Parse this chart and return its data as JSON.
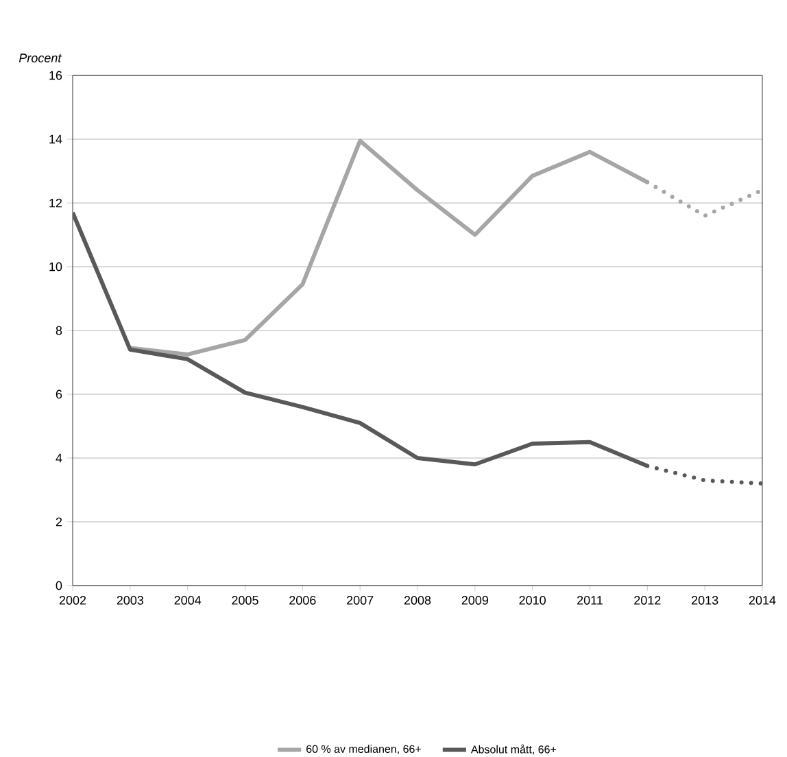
{
  "chart_data": {
    "type": "line",
    "ylabel": "Procent",
    "xlim": [
      2002,
      2014
    ],
    "xticks": [
      2002,
      2003,
      2004,
      2005,
      2006,
      2007,
      2008,
      2009,
      2010,
      2011,
      2012,
      2013,
      2014
    ],
    "ylim": [
      0,
      16
    ],
    "yticks": [
      0,
      2,
      4,
      6,
      8,
      10,
      12,
      14,
      16
    ],
    "grid": "y",
    "legend": "bottom",
    "marker": "none",
    "series": [
      {
        "name": "60 % av medianen, 66+",
        "color": "#a6a6a6",
        "line_style": "solid",
        "x": [
          2003,
          2004,
          2005,
          2006,
          2007,
          2008,
          2009,
          2010,
          2011,
          2012
        ],
        "values": [
          7.45,
          7.25,
          7.7,
          9.45,
          13.95,
          12.4,
          11.0,
          12.85,
          13.6,
          12.65
        ]
      },
      {
        "color": "#a6a6a6",
        "line_style": "dotted",
        "x": [
          2012,
          2013,
          2014
        ],
        "values": [
          12.65,
          11.6,
          12.4
        ]
      },
      {
        "name": "Absolut mått, 66+",
        "color": "#595959",
        "line_style": "solid",
        "x": [
          2002,
          2003,
          2004,
          2005,
          2006,
          2007,
          2008,
          2009,
          2010,
          2011,
          2012
        ],
        "values": [
          11.7,
          7.4,
          7.1,
          6.05,
          5.6,
          5.1,
          4.0,
          3.8,
          4.45,
          4.5,
          3.75
        ]
      },
      {
        "color": "#595959",
        "line_style": "dotted",
        "x": [
          2012,
          2013,
          2014
        ],
        "values": [
          3.75,
          3.3,
          3.2
        ]
      }
    ]
  }
}
